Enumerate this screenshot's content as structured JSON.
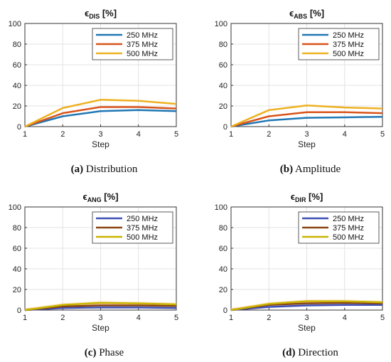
{
  "colors": {
    "series_top": [
      "#1f77b4",
      "#d95319",
      "#edb120"
    ],
    "series_bottom": [
      "#3f4fb5",
      "#8b4513",
      "#c8b400"
    ],
    "series_bottom_faint": [
      "#9ac7e8",
      "#f2a08a",
      "#f7d38a"
    ]
  },
  "chart_data": [
    {
      "type": "line",
      "title_main": "ϵ",
      "title_sub": "DIS",
      "title_suffix": " [%]",
      "xlabel": "Step",
      "ylabel": "",
      "x": [
        1,
        2,
        3,
        4,
        5
      ],
      "xlim": [
        1,
        5
      ],
      "ylim": [
        0,
        100
      ],
      "xticks": [
        1,
        2,
        3,
        4,
        5
      ],
      "yticks": [
        0,
        20,
        40,
        60,
        80,
        100
      ],
      "grid": true,
      "legend_position": "top-right",
      "series": [
        {
          "name": "250 MHz",
          "values": [
            0,
            10,
            15,
            16,
            15
          ]
        },
        {
          "name": "375 MHz",
          "values": [
            0,
            13,
            19,
            19,
            17.5
          ]
        },
        {
          "name": "500 MHz",
          "values": [
            0,
            18,
            26,
            25,
            22
          ]
        }
      ],
      "caption_label": "(a)",
      "caption_text": " Distribution"
    },
    {
      "type": "line",
      "title_main": "ϵ",
      "title_sub": "ABS",
      "title_suffix": " [%]",
      "xlabel": "Step",
      "ylabel": "",
      "x": [
        1,
        2,
        3,
        4,
        5
      ],
      "xlim": [
        1,
        5
      ],
      "ylim": [
        0,
        100
      ],
      "xticks": [
        1,
        2,
        3,
        4,
        5
      ],
      "yticks": [
        0,
        20,
        40,
        60,
        80,
        100
      ],
      "grid": true,
      "legend_position": "top-right",
      "series": [
        {
          "name": "250 MHz",
          "values": [
            0,
            6,
            8.5,
            9,
            9.5
          ]
        },
        {
          "name": "375 MHz",
          "values": [
            0,
            10,
            14,
            14,
            13
          ]
        },
        {
          "name": "500 MHz",
          "values": [
            0,
            16,
            20.5,
            18.5,
            17.5
          ]
        }
      ],
      "caption_label": "(b)",
      "caption_text": " Amplitude"
    },
    {
      "type": "line",
      "title_main": "ϵ",
      "title_sub": "ANG",
      "title_suffix": " [%]",
      "xlabel": "Step",
      "ylabel": "",
      "x": [
        1,
        2,
        3,
        4,
        5
      ],
      "xlim": [
        1,
        5
      ],
      "ylim": [
        0,
        100
      ],
      "xticks": [
        1,
        2,
        3,
        4,
        5
      ],
      "yticks": [
        0,
        20,
        40,
        60,
        80,
        100
      ],
      "grid": true,
      "legend_position": "top-right",
      "series": [
        {
          "name": "250 MHz",
          "values": [
            0,
            2,
            2.5,
            2.5,
            2
          ]
        },
        {
          "name": "375 MHz",
          "values": [
            0,
            3.5,
            4.5,
            4.5,
            4
          ]
        },
        {
          "name": "500 MHz",
          "values": [
            0,
            5,
            7,
            6.5,
            5.5
          ]
        }
      ],
      "caption_label": "(c)",
      "caption_text": " Phase"
    },
    {
      "type": "line",
      "title_main": "ϵ",
      "title_sub": "DIR",
      "title_suffix": " [%]",
      "xlabel": "Step",
      "ylabel": "",
      "x": [
        1,
        2,
        3,
        4,
        5
      ],
      "xlim": [
        1,
        5
      ],
      "ylim": [
        0,
        100
      ],
      "xticks": [
        1,
        2,
        3,
        4,
        5
      ],
      "yticks": [
        0,
        20,
        40,
        60,
        80,
        100
      ],
      "grid": true,
      "legend_position": "top-right",
      "series": [
        {
          "name": "250 MHz",
          "values": [
            0,
            3,
            4.5,
            5,
            5
          ]
        },
        {
          "name": "375 MHz",
          "values": [
            0,
            5,
            6.5,
            7,
            6.5
          ]
        },
        {
          "name": "500 MHz",
          "values": [
            0,
            6,
            8.5,
            8.5,
            7.5
          ]
        }
      ],
      "caption_label": "(d)",
      "caption_text": " Direction"
    }
  ]
}
